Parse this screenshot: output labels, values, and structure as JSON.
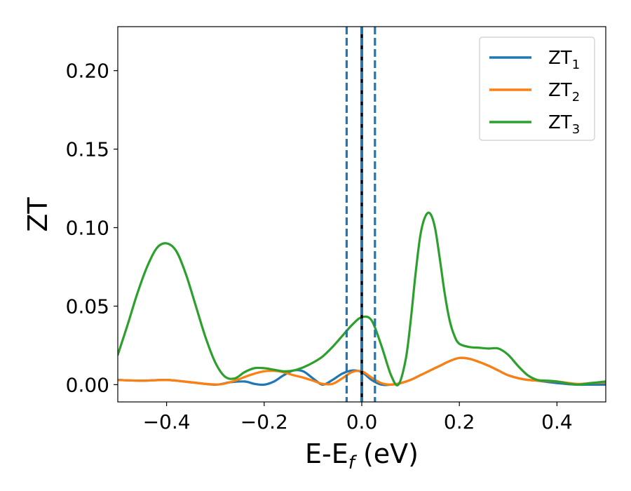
{
  "chart_data": {
    "type": "line",
    "title": "",
    "xlabel": {
      "main": "E-E",
      "sub": "f",
      "suffix": " (eV)"
    },
    "ylabel": "ZT",
    "xlim": [
      -0.5,
      0.5
    ],
    "ylim": [
      -0.011,
      0.228
    ],
    "xticks": [
      -0.4,
      -0.2,
      0.0,
      0.2,
      0.4
    ],
    "xtick_labels": [
      "−0.4",
      "−0.2",
      "0.0",
      "0.2",
      "0.4"
    ],
    "yticks": [
      0.0,
      0.05,
      0.1,
      0.15,
      0.2
    ],
    "ytick_labels": [
      "0.00",
      "0.05",
      "0.10",
      "0.15",
      "0.20"
    ],
    "grid": false,
    "legend_position": "top-right",
    "series": [
      {
        "name": "ZT",
        "name_sub": "1",
        "color": "#1f77b4",
        "x": [
          -0.5,
          -0.45,
          -0.4,
          -0.35,
          -0.3,
          -0.27,
          -0.24,
          -0.22,
          -0.2,
          -0.18,
          -0.16,
          -0.14,
          -0.12,
          -0.1,
          -0.08,
          -0.06,
          -0.04,
          -0.02,
          0.0,
          0.02,
          0.04,
          0.06,
          0.08,
          0.1,
          0.12,
          0.14,
          0.16,
          0.18,
          0.2,
          0.22,
          0.24,
          0.26,
          0.28,
          0.3,
          0.33,
          0.36,
          0.4,
          0.44,
          0.47,
          0.5
        ],
        "y": [
          0.003,
          0.0025,
          0.003,
          0.0015,
          0.0,
          0.0015,
          0.002,
          0.0005,
          0.0,
          0.002,
          0.006,
          0.009,
          0.0085,
          0.004,
          0.0,
          0.003,
          0.007,
          0.009,
          0.008,
          0.003,
          0.0,
          0.0,
          0.001,
          0.003,
          0.006,
          0.009,
          0.012,
          0.015,
          0.017,
          0.0165,
          0.0145,
          0.012,
          0.009,
          0.006,
          0.0035,
          0.0025,
          0.001,
          0.0,
          0.0,
          0.0
        ]
      },
      {
        "name": "ZT",
        "name_sub": "2",
        "color": "#ff7f0e",
        "x": [
          -0.5,
          -0.45,
          -0.4,
          -0.35,
          -0.32,
          -0.29,
          -0.26,
          -0.23,
          -0.2,
          -0.17,
          -0.14,
          -0.12,
          -0.1,
          -0.08,
          -0.06,
          -0.04,
          -0.02,
          0.0,
          0.02,
          0.04,
          0.06,
          0.08,
          0.1,
          0.12,
          0.14,
          0.16,
          0.18,
          0.2,
          0.22,
          0.24,
          0.26,
          0.28,
          0.3,
          0.33,
          0.36,
          0.4,
          0.44,
          0.47,
          0.5
        ],
        "y": [
          0.003,
          0.0025,
          0.003,
          0.0015,
          0.0005,
          0.0002,
          0.0025,
          0.006,
          0.0085,
          0.0085,
          0.006,
          0.0045,
          0.0025,
          0.0005,
          0.0005,
          0.004,
          0.008,
          0.0085,
          0.0045,
          0.001,
          0.0,
          0.001,
          0.003,
          0.006,
          0.009,
          0.012,
          0.015,
          0.017,
          0.0165,
          0.0145,
          0.012,
          0.009,
          0.006,
          0.0035,
          0.0025,
          0.002,
          0.0005,
          0.001,
          0.0015
        ]
      },
      {
        "name": "ZT",
        "name_sub": "3",
        "color": "#2ca02c",
        "x": [
          -0.5,
          -0.48,
          -0.46,
          -0.44,
          -0.42,
          -0.4,
          -0.38,
          -0.36,
          -0.34,
          -0.32,
          -0.3,
          -0.28,
          -0.26,
          -0.24,
          -0.22,
          -0.2,
          -0.18,
          -0.16,
          -0.14,
          -0.12,
          -0.1,
          -0.08,
          -0.06,
          -0.04,
          -0.02,
          0.0,
          0.02,
          0.04,
          0.06,
          0.075,
          0.09,
          0.1,
          0.11,
          0.12,
          0.13,
          0.14,
          0.15,
          0.16,
          0.17,
          0.18,
          0.19,
          0.2,
          0.22,
          0.24,
          0.26,
          0.28,
          0.3,
          0.32,
          0.34,
          0.36,
          0.38,
          0.4,
          0.44,
          0.47,
          0.5
        ],
        "y": [
          0.019,
          0.038,
          0.058,
          0.075,
          0.087,
          0.09,
          0.085,
          0.07,
          0.05,
          0.03,
          0.014,
          0.005,
          0.004,
          0.008,
          0.0105,
          0.0105,
          0.0095,
          0.0085,
          0.009,
          0.011,
          0.014,
          0.018,
          0.024,
          0.031,
          0.038,
          0.043,
          0.041,
          0.025,
          0.006,
          0.0,
          0.016,
          0.04,
          0.07,
          0.095,
          0.107,
          0.109,
          0.1,
          0.08,
          0.058,
          0.041,
          0.031,
          0.026,
          0.024,
          0.0235,
          0.023,
          0.023,
          0.019,
          0.012,
          0.006,
          0.003,
          0.0025,
          0.002,
          0.0,
          0.001,
          0.002
        ]
      }
    ],
    "vlines": [
      {
        "x": 0.0,
        "color": "#000000",
        "style": "solid"
      },
      {
        "x": -0.031,
        "color": "#1f77b4",
        "style": "dashed"
      },
      {
        "x": 0.0,
        "color": "#1f77b4",
        "style": "dashed"
      },
      {
        "x": 0.027,
        "color": "#1f77b4",
        "style": "dashed"
      }
    ]
  }
}
